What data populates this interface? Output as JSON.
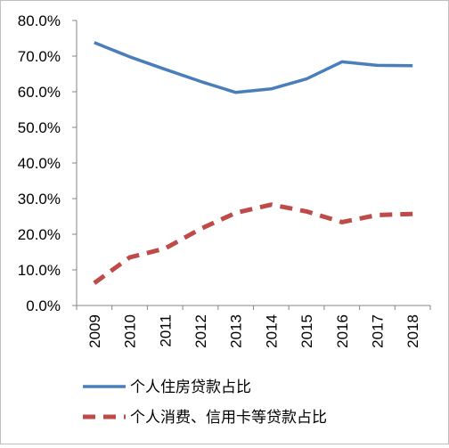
{
  "chart_data": {
    "type": "line",
    "title": "",
    "xlabel": "",
    "ylabel": "",
    "categories": [
      "2009",
      "2010",
      "2011",
      "2012",
      "2013",
      "2014",
      "2015",
      "2016",
      "2017",
      "2018"
    ],
    "ylim": [
      0,
      80
    ],
    "y_ticks": [
      0,
      10,
      20,
      30,
      40,
      50,
      60,
      70,
      80
    ],
    "y_tick_labels": [
      "0.0%",
      "10.0%",
      "20.0%",
      "30.0%",
      "40.0%",
      "50.0%",
      "60.0%",
      "70.0%",
      "80.0%"
    ],
    "grid": false,
    "legend_position": "bottom",
    "series": [
      {
        "name": "个人住房贷款占比",
        "style": "solid",
        "color": "#4a7ebb",
        "values": [
          73.8,
          69.8,
          66.3,
          62.9,
          59.8,
          60.8,
          63.6,
          68.4,
          67.4,
          67.3
        ]
      },
      {
        "name": "个人消费、信用卡等贷款占比",
        "style": "dashed",
        "color": "#be4b48",
        "values": [
          6.3,
          13.5,
          16.0,
          21.5,
          26.0,
          28.3,
          26.4,
          23.4,
          25.4,
          25.7
        ]
      }
    ]
  }
}
